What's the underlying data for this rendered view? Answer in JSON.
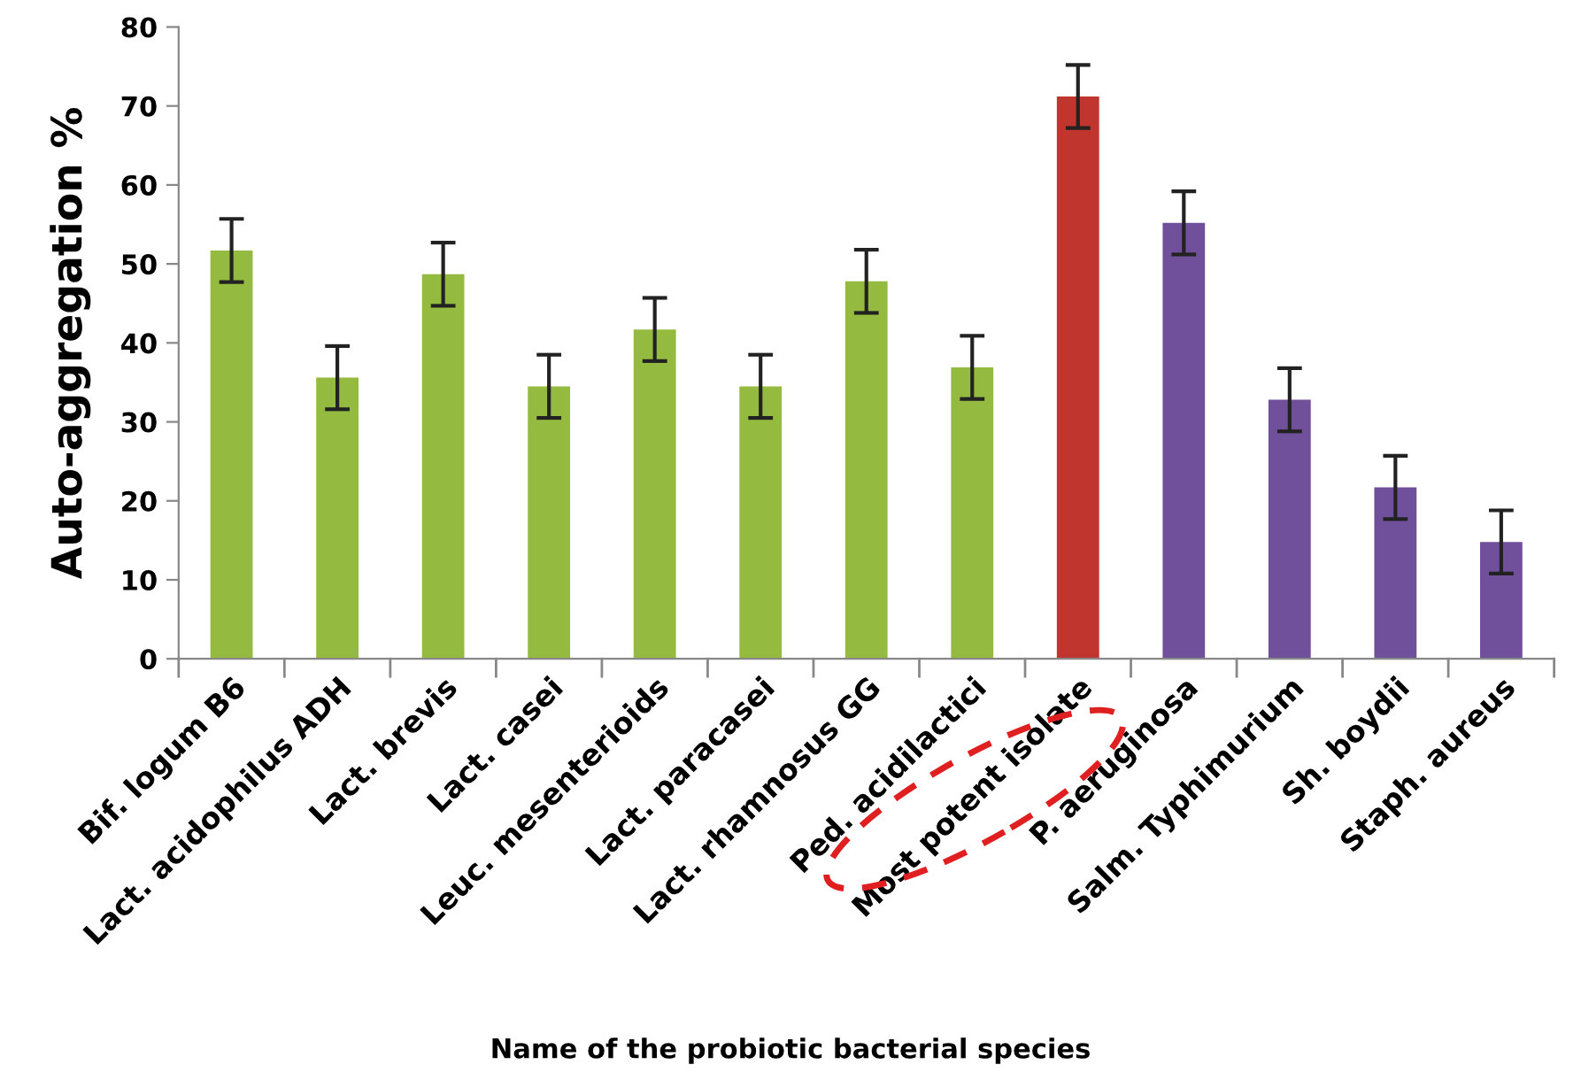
{
  "chart_data": {
    "type": "bar",
    "xlabel": "Name of the probiotic bacterial species",
    "ylabel": "Auto-aggregation %",
    "categories": [
      "Bif. logum B6",
      "Lact. acidophilus ADH",
      "Lact. brevis",
      "Lact. casei",
      "Leuc. mesenterioids",
      "Lact. paracasei",
      "Lact. rhamnosus GG",
      "Ped. acidilactici",
      "Most potent isolate",
      "P. aeruginosa",
      "Salm. Typhimurium",
      "Sh. boydii",
      "Staph. aureus"
    ],
    "values": [
      51.7,
      35.6,
      48.7,
      34.5,
      41.7,
      34.5,
      47.8,
      36.9,
      71.2,
      55.2,
      32.8,
      21.7,
      14.8
    ],
    "errors": [
      4,
      4,
      4,
      4,
      4,
      4,
      4,
      4,
      4,
      4,
      4,
      4,
      4
    ],
    "colors": [
      "#94ba3f",
      "#94ba3f",
      "#94ba3f",
      "#94ba3f",
      "#94ba3f",
      "#94ba3f",
      "#94ba3f",
      "#94ba3f",
      "#c0362f",
      "#71509b",
      "#71509b",
      "#71509b",
      "#71509b"
    ],
    "ylim": [
      0,
      80
    ],
    "yticks": [
      0,
      10,
      20,
      30,
      40,
      50,
      60,
      70,
      80
    ],
    "grid": false,
    "legend": false
  }
}
